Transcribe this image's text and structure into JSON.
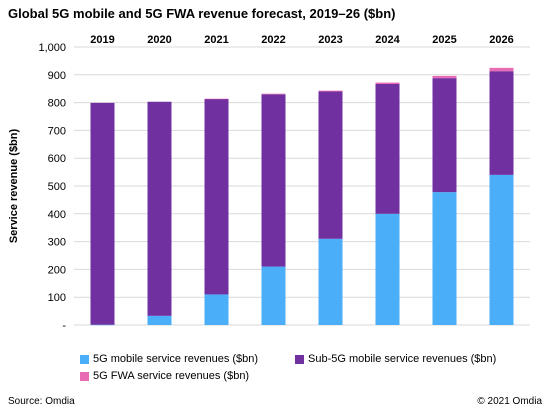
{
  "chart_data": {
    "type": "bar",
    "stacked": true,
    "title": "Global 5G mobile and 5G FWA revenue forecast, 2019–26 ($bn)",
    "ylabel": "Service revenue ($bn)",
    "xlabel": "",
    "categories": [
      "2019",
      "2020",
      "2021",
      "2022",
      "2023",
      "2024",
      "2025",
      "2026"
    ],
    "ylim": [
      0,
      1000
    ],
    "yticks": [
      0,
      100,
      200,
      300,
      400,
      500,
      600,
      700,
      800,
      900,
      1000
    ],
    "ytick_labels": [
      "-",
      "100",
      "200",
      "300",
      "400",
      "500",
      "600",
      "700",
      "800",
      "900",
      "1,000"
    ],
    "grid": true,
    "legend_position": "bottom",
    "series": [
      {
        "name": "5G mobile service revenues ($bn)",
        "color": "#4aaef8",
        "values": [
          1,
          33,
          110,
          210,
          310,
          400,
          478,
          540
        ]
      },
      {
        "name": "Sub-5G mobile service revenues ($bn)",
        "color": "#7030a0",
        "values": [
          798,
          770,
          703,
          620,
          530,
          467,
          410,
          373
        ]
      },
      {
        "name": "5G FWA service revenues ($bn)",
        "color": "#e86bb3",
        "values": [
          0,
          0,
          1,
          2,
          3,
          5,
          8,
          12
        ]
      }
    ]
  },
  "footer": {
    "source": "Source: Omdia",
    "copyright": "© 2021 Omdia"
  }
}
